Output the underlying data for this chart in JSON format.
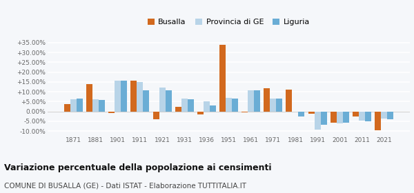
{
  "years": [
    1871,
    1881,
    1901,
    1911,
    1921,
    1931,
    1936,
    1951,
    1961,
    1971,
    1981,
    1991,
    2001,
    2011,
    2021
  ],
  "busalla": [
    3.8,
    14.0,
    -0.8,
    15.8,
    -4.0,
    2.3,
    -1.5,
    34.0,
    -0.3,
    11.8,
    11.0,
    -1.0,
    -5.8,
    -2.5,
    -9.5
  ],
  "provincia": [
    6.2,
    6.2,
    15.8,
    14.8,
    12.0,
    6.6,
    5.3,
    7.0,
    10.8,
    6.5,
    0.0,
    -9.2,
    -6.0,
    -4.5,
    -3.5
  ],
  "liguria": [
    6.5,
    5.8,
    15.8,
    10.8,
    10.8,
    6.3,
    3.0,
    6.7,
    10.8,
    6.7,
    -2.5,
    -6.8,
    -5.8,
    -5.0,
    -4.0
  ],
  "color_busalla": "#d2691e",
  "color_provincia": "#b8d4e8",
  "color_liguria": "#6aadd5",
  "title": "Variazione percentuale della popolazione ai censimenti",
  "subtitle": "COMUNE DI BUSALLA (GE) - Dati ISTAT - Elaborazione TUTTITALIA.IT",
  "ylim": [
    -12,
    37
  ],
  "yticks": [
    -10,
    -5,
    0,
    5,
    10,
    15,
    20,
    25,
    30,
    35
  ],
  "bg_color": "#f5f7fa",
  "grid_color": "#ffffff",
  "plot_bg": "#f5f7fa"
}
